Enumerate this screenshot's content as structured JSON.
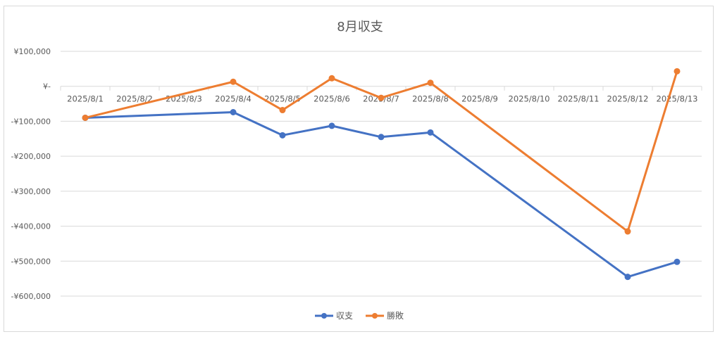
{
  "chart_data": {
    "type": "line",
    "title": "8月収支",
    "categories": [
      "2025/8/1",
      "2025/8/2",
      "2025/8/3",
      "2025/8/4",
      "2025/8/5",
      "2025/8/6",
      "2025/8/7",
      "2025/8/8",
      "2025/8/9",
      "2025/8/10",
      "2025/8/11",
      "2025/8/12",
      "2025/8/13"
    ],
    "series": [
      {
        "name": "収支",
        "color": "#4472c4",
        "values": [
          -90000,
          null,
          null,
          -74000,
          -140000,
          -113000,
          -145000,
          -132000,
          null,
          null,
          null,
          -545000,
          -502000
        ]
      },
      {
        "name": "勝敗",
        "color": "#ed7d31",
        "values": [
          -90000,
          null,
          null,
          13000,
          -68000,
          23000,
          -33000,
          10000,
          null,
          null,
          null,
          -415000,
          43000
        ]
      }
    ],
    "ylim": [
      -600000,
      100000
    ],
    "yticks": [
      100000,
      0,
      -100000,
      -200000,
      -300000,
      -400000,
      -500000,
      -600000
    ],
    "ytick_labels": [
      "¥100,000",
      "¥-",
      "-¥100,000",
      "-¥200,000",
      "-¥300,000",
      "-¥400,000",
      "-¥500,000",
      "-¥600,000"
    ],
    "xlabel": "",
    "ylabel": "",
    "grid": true,
    "legend_position": "bottom"
  }
}
